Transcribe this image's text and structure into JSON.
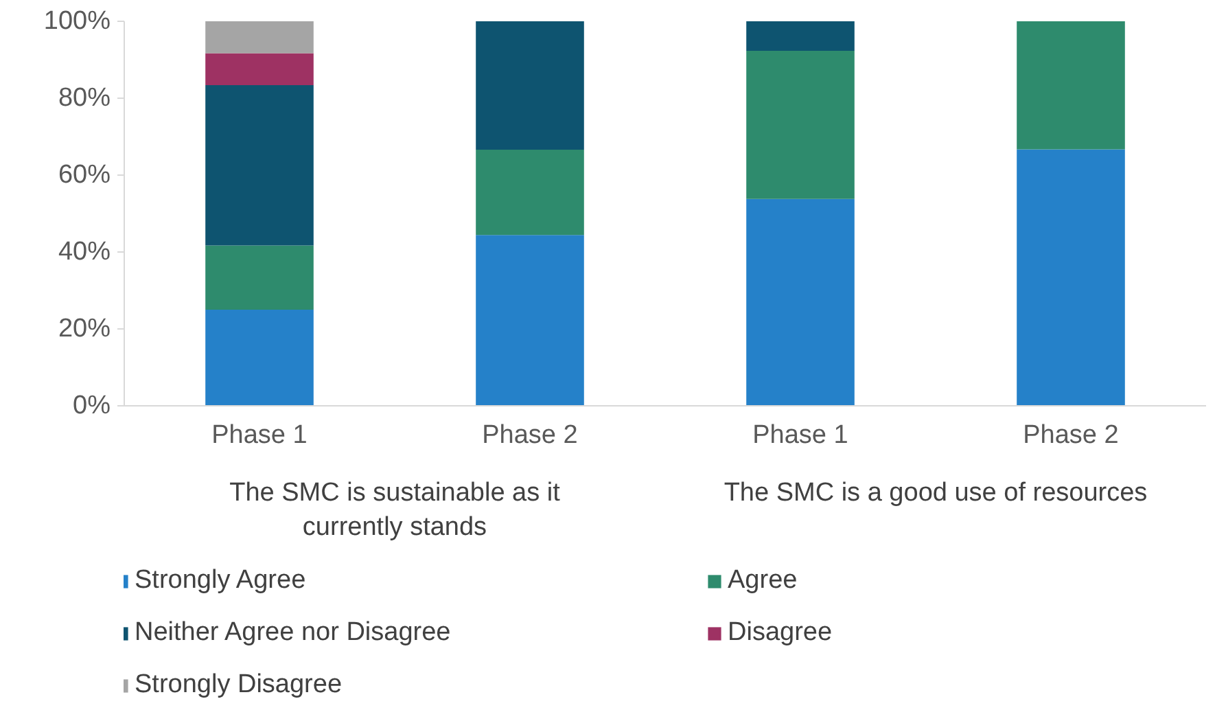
{
  "chart_data": {
    "type": "bar",
    "stacked": true,
    "categories": [
      "Phase 1",
      "Phase 2",
      "Phase 1",
      "Phase 2"
    ],
    "series": [
      {
        "name": "Strongly Agree",
        "color": "#2581c9",
        "values": [
          25,
          44.4,
          53.8,
          66.7
        ]
      },
      {
        "name": "Agree",
        "color": "#2e8b6d",
        "values": [
          16.7,
          22.2,
          38.5,
          33.3
        ]
      },
      {
        "name": "Neither Agree nor Disagree",
        "color": "#0e5470",
        "values": [
          41.7,
          33.4,
          7.7,
          0
        ]
      },
      {
        "name": "Disagree",
        "color": "#9e3263",
        "values": [
          8.3,
          0,
          0,
          0
        ]
      },
      {
        "name": "Strongly Disagree",
        "color": "#a5a5a5",
        "values": [
          8.3,
          0,
          0,
          0
        ]
      }
    ],
    "ylim": [
      0,
      100
    ],
    "yticks": [
      {
        "value": 0,
        "label": "0%"
      },
      {
        "value": 20,
        "label": "20%"
      },
      {
        "value": 40,
        "label": "40%"
      },
      {
        "value": 60,
        "label": "60%"
      },
      {
        "value": 80,
        "label": "80%"
      },
      {
        "value": 100,
        "label": "100%"
      }
    ],
    "annotations": [
      "The SMC is sustainable as it currently stands",
      "The SMC is a good use of resources"
    ],
    "grid": false,
    "legend": "bottom"
  }
}
